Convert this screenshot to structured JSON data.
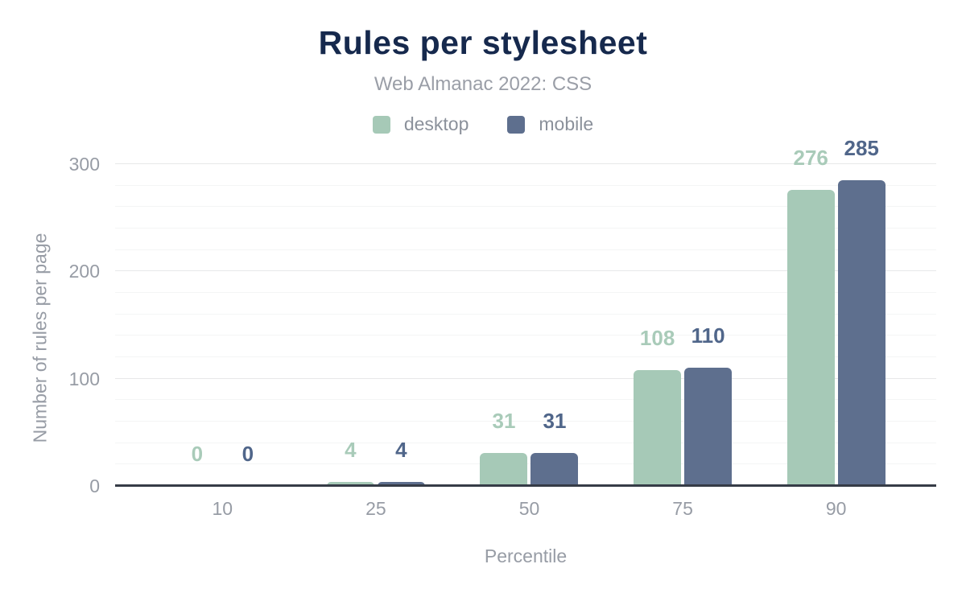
{
  "chart_data": {
    "type": "bar",
    "title": "Rules per stylesheet",
    "subtitle": "Web Almanac 2022: CSS",
    "xlabel": "Percentile",
    "ylabel": "Number of rules per page",
    "categories": [
      "10",
      "25",
      "50",
      "75",
      "90"
    ],
    "series": [
      {
        "name": "desktop",
        "values": [
          0,
          4,
          31,
          108,
          276
        ],
        "color": "#a6c9b7",
        "label_color": "#a9cbb9"
      },
      {
        "name": "mobile",
        "values": [
          0,
          4,
          31,
          110,
          285
        ],
        "color": "#5e6f8e",
        "label_color": "#50668a"
      }
    ],
    "ylim": [
      0,
      300
    ],
    "yticks": [
      0,
      100,
      200,
      300
    ],
    "grid": {
      "minor_step": 20,
      "major_step": 100,
      "enabled": true
    },
    "legend_position": "top"
  },
  "colors": {
    "background": "#ffffff",
    "title": "#16294d",
    "subtitle": "#9a9ea7",
    "legend_text": "#8b919b",
    "tick_text": "#979ca5",
    "axis_line": "#363c47",
    "major_grid": "#e7e8e9",
    "minor_grid": "#f4f5f5"
  }
}
